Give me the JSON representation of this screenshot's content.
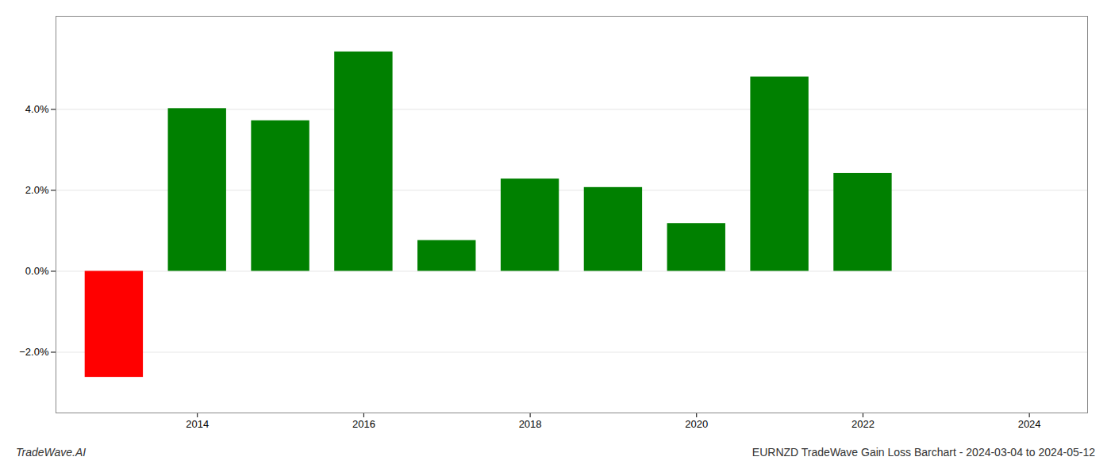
{
  "chart_data": {
    "type": "bar",
    "x": [
      2013,
      2014,
      2015,
      2016,
      2017,
      2018,
      2019,
      2020,
      2021,
      2022,
      2023
    ],
    "values": [
      -0.0262,
      0.0402,
      0.0372,
      0.0542,
      0.0076,
      0.0228,
      0.0207,
      0.0118,
      0.048,
      0.0242,
      0.0
    ],
    "colors": [
      "#ff0000",
      "#008000",
      "#008000",
      "#008000",
      "#008000",
      "#008000",
      "#008000",
      "#008000",
      "#008000",
      "#008000",
      "#008000"
    ],
    "xlim": [
      2012.3,
      2024.7
    ],
    "xticks": [
      2014,
      2016,
      2018,
      2020,
      2022,
      2024
    ],
    "ylim": [
      -0.035,
      0.063
    ],
    "yticks": [
      {
        "value": -0.02,
        "label": "−2.0%"
      },
      {
        "value": 0.0,
        "label": "0.0%"
      },
      {
        "value": 0.02,
        "label": "2.0%"
      },
      {
        "value": 0.04,
        "label": "4.0%"
      }
    ],
    "grid": true,
    "annotations": [
      "TradeWave.AI",
      "EURNZD TradeWave Gain Loss Barchart - 2024-03-04 to 2024-05-12"
    ]
  }
}
